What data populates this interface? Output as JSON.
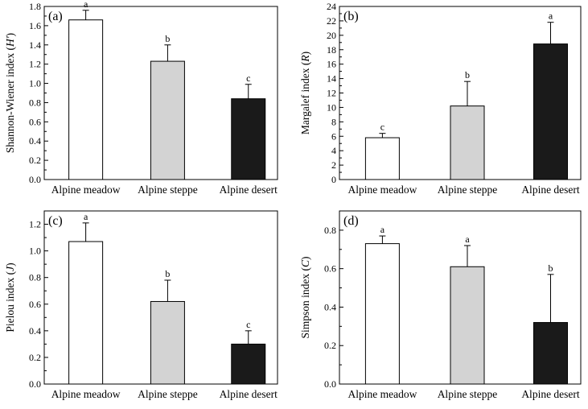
{
  "chart_data": [
    {
      "type": "bar",
      "panel_label": "(a)",
      "ylabel": "Shannon-Wiener index (",
      "ylabel_symbol": "H'",
      "ylabel_close": ")",
      "categories": [
        "Alpine meadow",
        "Alpine steppe",
        "Alpine desert"
      ],
      "values": [
        1.66,
        1.23,
        0.84
      ],
      "errors": [
        0.1,
        0.17,
        0.15
      ],
      "letters": [
        "a",
        "b",
        "c"
      ],
      "colors": [
        "#ffffff",
        "#d3d3d3",
        "#1a1a1a"
      ],
      "ylim": [
        0,
        1.8
      ],
      "yticks": [
        "0.0",
        "0.2",
        "0.4",
        "0.6",
        "0.8",
        "1.0",
        "1.2",
        "1.4",
        "1.6",
        "1.8"
      ]
    },
    {
      "type": "bar",
      "panel_label": "(b)",
      "ylabel": "Margalef index (",
      "ylabel_symbol": "R",
      "ylabel_close": ")",
      "categories": [
        "Alpine meadow",
        "Alpine steppe",
        "Alpine desert"
      ],
      "values": [
        5.8,
        10.2,
        18.8
      ],
      "errors": [
        0.6,
        3.4,
        3.0
      ],
      "letters": [
        "c",
        "b",
        "a"
      ],
      "colors": [
        "#ffffff",
        "#d3d3d3",
        "#1a1a1a"
      ],
      "ylim": [
        0,
        24
      ],
      "yticks": [
        "0",
        "2",
        "4",
        "6",
        "8",
        "10",
        "12",
        "14",
        "16",
        "18",
        "20",
        "22",
        "24"
      ]
    },
    {
      "type": "bar",
      "panel_label": "(c)",
      "ylabel": "Pielou index (",
      "ylabel_symbol": "J",
      "ylabel_close": ")",
      "categories": [
        "Alpine meadow",
        "Alpine steppe",
        "Alpine desert"
      ],
      "values": [
        1.07,
        0.62,
        0.3
      ],
      "errors": [
        0.14,
        0.16,
        0.1
      ],
      "letters": [
        "a",
        "b",
        "c"
      ],
      "colors": [
        "#ffffff",
        "#d3d3d3",
        "#1a1a1a"
      ],
      "ylim": [
        0,
        1.3
      ],
      "yticks": [
        "0.0",
        "0.2",
        "0.4",
        "0.6",
        "0.8",
        "1.0",
        "1.2"
      ]
    },
    {
      "type": "bar",
      "panel_label": "(d)",
      "ylabel": "Simpson index (",
      "ylabel_symbol": "C",
      "ylabel_close": ")",
      "categories": [
        "Alpine meadow",
        "Alpine steppe",
        "Alpine desert"
      ],
      "values": [
        0.73,
        0.61,
        0.32
      ],
      "errors": [
        0.04,
        0.11,
        0.25
      ],
      "letters": [
        "a",
        "a",
        "b"
      ],
      "colors": [
        "#ffffff",
        "#d3d3d3",
        "#1a1a1a"
      ],
      "ylim": [
        0,
        0.9
      ],
      "yticks": [
        "0.0",
        "0.2",
        "0.4",
        "0.6",
        "0.8"
      ]
    }
  ]
}
